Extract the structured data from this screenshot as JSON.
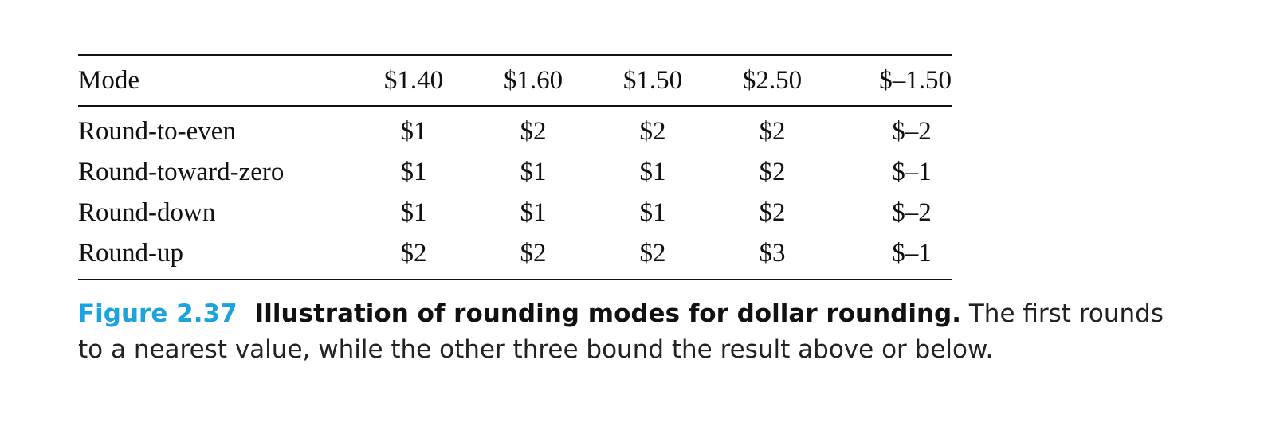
{
  "table": {
    "headers": [
      "Mode",
      "$1.40",
      "$1.60",
      "$1.50",
      "$2.50",
      "$–1.50"
    ],
    "rows": [
      [
        "Round-to-even",
        "$1",
        "$2",
        "$2",
        "$2",
        "$–2"
      ],
      [
        "Round-toward-zero",
        "$1",
        "$1",
        "$1",
        "$2",
        "$–1"
      ],
      [
        "Round-down",
        "$1",
        "$1",
        "$1",
        "$2",
        "$–2"
      ],
      [
        "Round-up",
        "$2",
        "$2",
        "$2",
        "$3",
        "$–1"
      ]
    ]
  },
  "caption": {
    "figure_number": "Figure 2.37",
    "title": "Illustration of rounding modes for dollar rounding.",
    "text": "The first rounds to a nearest value, while the other three bound the result above or below.",
    "figure_number_color": "#1aa3dc"
  }
}
